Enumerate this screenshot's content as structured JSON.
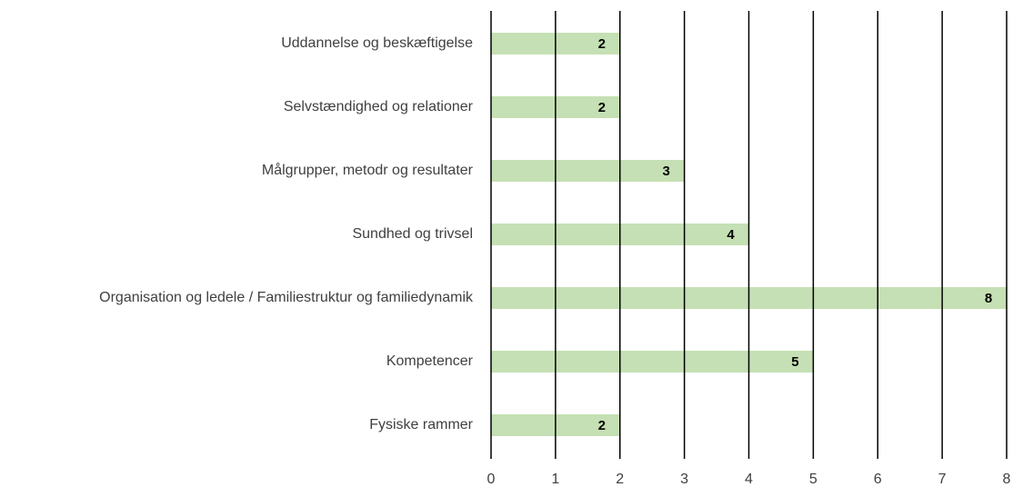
{
  "chart_data": {
    "type": "bar",
    "orientation": "horizontal",
    "categories": [
      "Uddannelse og beskæftigelse",
      "Selvstændighed og relationer",
      "Målgrupper, metodr og resultater",
      "Sundhed og trivsel",
      "Organisation og ledele / Familiestruktur og familiedynamik",
      "Kompetencer",
      "Fysiske rammer"
    ],
    "values": [
      2,
      2,
      3,
      4,
      8,
      5,
      2
    ],
    "color": "#c5e0b4",
    "xlim": [
      0,
      8
    ],
    "xticks": [
      0,
      1,
      2,
      3,
      4,
      5,
      6,
      7,
      8
    ],
    "grid": true
  }
}
